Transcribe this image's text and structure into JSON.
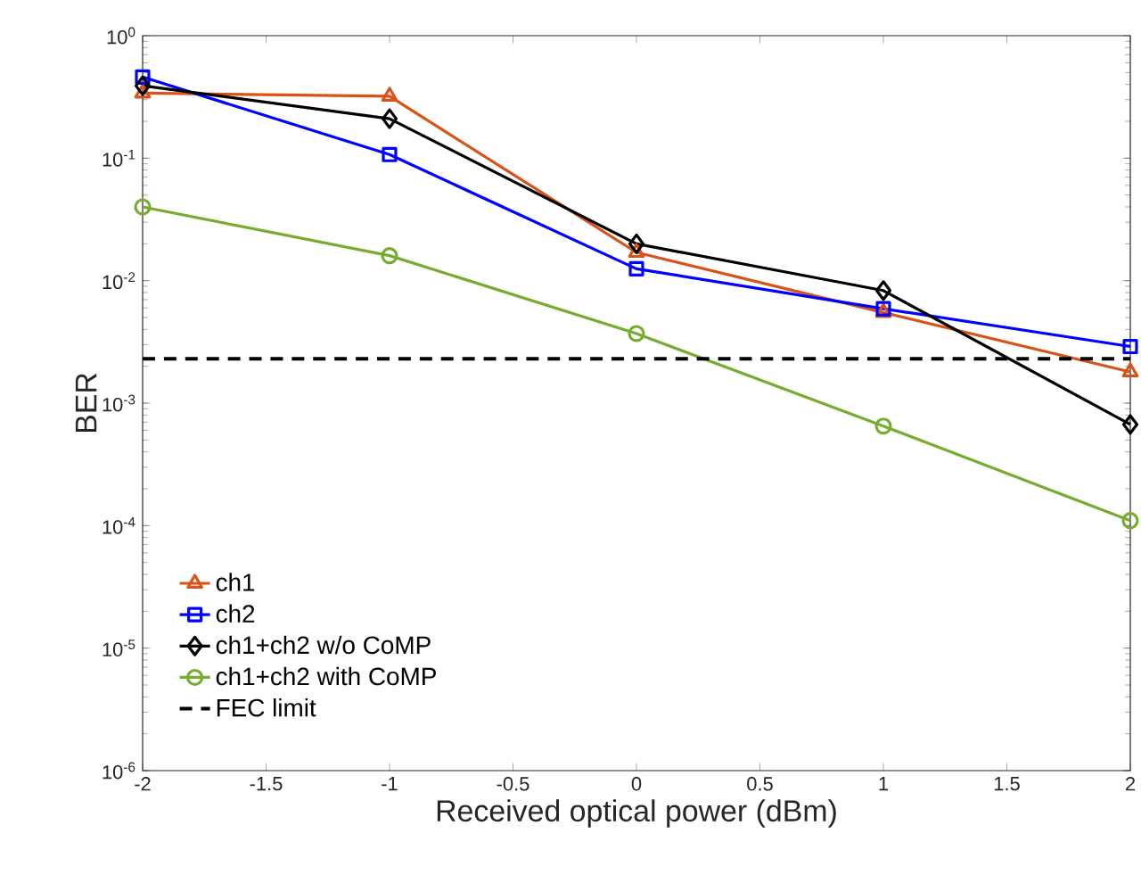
{
  "chart_data": {
    "type": "line",
    "xlabel": "Received optical power (dBm)",
    "ylabel": "BER",
    "x": [
      -2,
      -1,
      0,
      1,
      2
    ],
    "series": [
      {
        "name": "ch1",
        "color": "#d95319",
        "marker": "triangle",
        "values": [
          0.34,
          0.32,
          0.017,
          0.0055,
          0.0018
        ]
      },
      {
        "name": "ch2",
        "color": "#0000ff",
        "marker": "square",
        "values": [
          0.46,
          0.107,
          0.0125,
          0.0059,
          0.0029
        ]
      },
      {
        "name": "ch1+ch2 w/o CoMP",
        "color": "#000000",
        "marker": "diamond",
        "values": [
          0.39,
          0.21,
          0.02,
          0.0083,
          0.00067
        ]
      },
      {
        "name": "ch1+ch2 with CoMP",
        "color": "#77ac30",
        "marker": "circle",
        "values": [
          0.04,
          0.016,
          0.0037,
          0.00065,
          0.00011
        ]
      }
    ],
    "ref_lines": [
      {
        "axis": "y",
        "value": 0.0023,
        "label": "FEC limit",
        "color": "#000000",
        "line_style": "dashed"
      }
    ],
    "log": "y",
    "grid": false,
    "legend": "bottom left",
    "line_style": "solid",
    "xlim": [
      -2,
      2
    ],
    "ylim": [
      1e-06,
      1
    ],
    "xticks": [
      -2,
      -1.5,
      -1,
      -0.5,
      0,
      0.5,
      1,
      1.5,
      2
    ],
    "yticks": [
      {
        "value": 1e-06,
        "label": "10$^{-6}$"
      },
      {
        "value": 1e-05,
        "label": "10$^{-5}$"
      },
      {
        "value": 0.0001,
        "label": "10$^{-4}$"
      },
      {
        "value": 0.001,
        "label": "10$^{-3}$"
      },
      {
        "value": 0.01,
        "label": "10$^{-2}$"
      },
      {
        "value": 0.1,
        "label": "10$^{-1}$"
      },
      {
        "value": 1,
        "label": "10$^{0}$"
      }
    ]
  }
}
